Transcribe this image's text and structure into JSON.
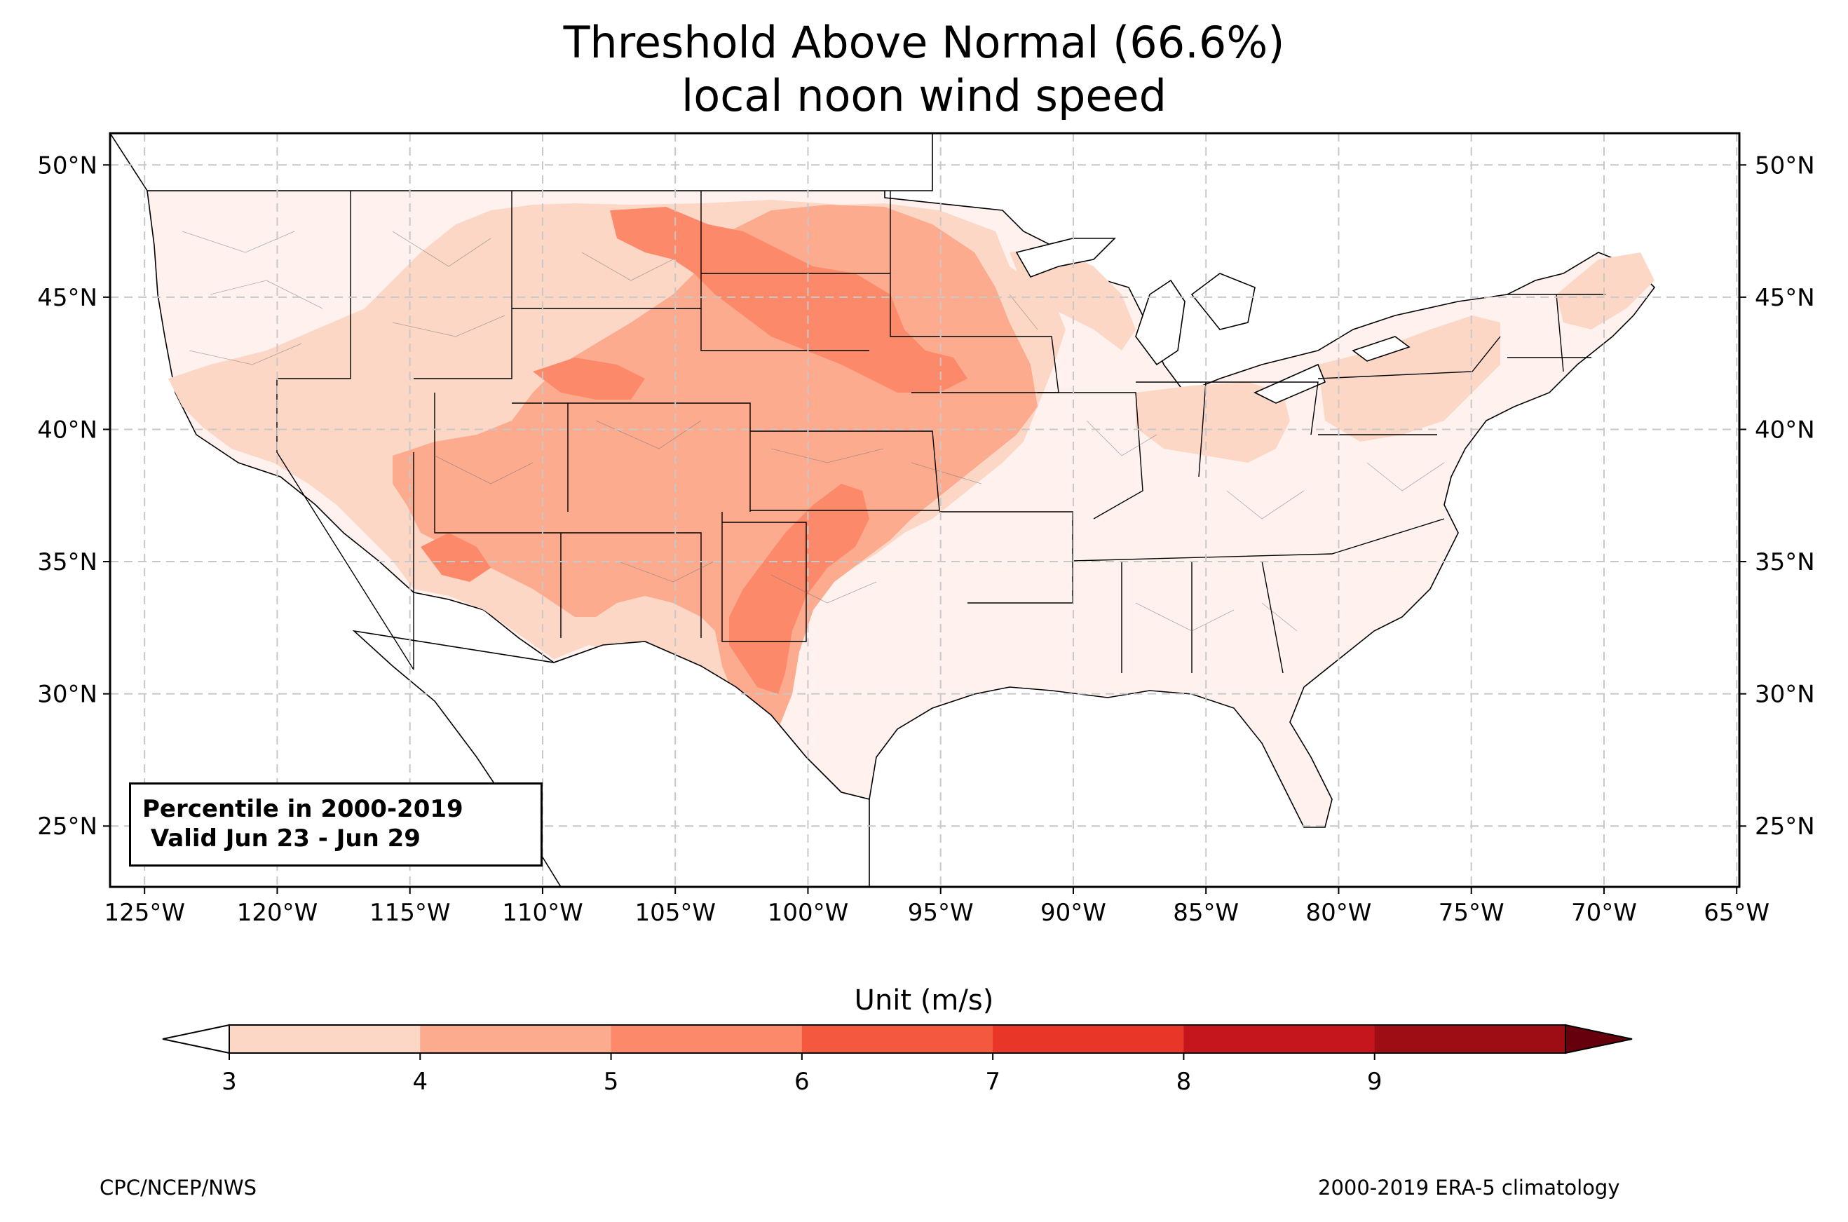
{
  "title": {
    "line1": "Threshold Above Normal (66.6%)",
    "line2": "local noon wind speed"
  },
  "map": {
    "lon_range": [
      -126.3,
      -64.9
    ],
    "lat_range": [
      22.7,
      51.2
    ],
    "lon_ticks": [
      {
        "value": -125,
        "label": "125°W"
      },
      {
        "value": -120,
        "label": "120°W"
      },
      {
        "value": -115,
        "label": "115°W"
      },
      {
        "value": -110,
        "label": "110°W"
      },
      {
        "value": -105,
        "label": "105°W"
      },
      {
        "value": -100,
        "label": "100°W"
      },
      {
        "value": -95,
        "label": "95°W"
      },
      {
        "value": -90,
        "label": "90°W"
      },
      {
        "value": -85,
        "label": "85°W"
      },
      {
        "value": -80,
        "label": "80°W"
      },
      {
        "value": -75,
        "label": "75°W"
      },
      {
        "value": -70,
        "label": "70°W"
      },
      {
        "value": -65,
        "label": "65°W"
      }
    ],
    "lat_ticks": [
      {
        "value": 25,
        "label": "25°N"
      },
      {
        "value": 30,
        "label": "30°N"
      },
      {
        "value": 35,
        "label": "35°N"
      },
      {
        "value": 40,
        "label": "40°N"
      },
      {
        "value": 45,
        "label": "45°N"
      },
      {
        "value": 50,
        "label": "50°N"
      }
    ],
    "info_box": {
      "line1": "Percentile in 2000-2019",
      "line2": " Valid Jun 23 - Jun 29"
    }
  },
  "colorbar": {
    "label": "Unit (m/s)",
    "levels": [
      3,
      4,
      5,
      6,
      7,
      8,
      9
    ],
    "colors": [
      "#fdd7c6",
      "#fcab8f",
      "#fc8a6a",
      "#f4593f",
      "#e83628",
      "#c4161c",
      "#9e0d14"
    ],
    "under_color": "#ffffff",
    "over_color": "#67000d"
  },
  "field_colors": {
    "below": "#fff2ee",
    "3-4": "#fdd7c6",
    "4-5": "#fcab8f",
    "5-6": "#fc8a6a"
  },
  "footer": {
    "left": "CPC/NCEP/NWS",
    "right": "2000-2019 ERA-5 climatology"
  }
}
